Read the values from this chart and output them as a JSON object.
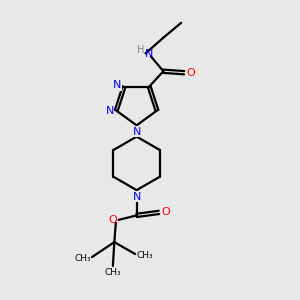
{
  "bg_color": "#e8e8e8",
  "bond_color": "#000000",
  "N_color": "#0000ff",
  "O_color": "#ff0000",
  "H_color": "#808080",
  "line_width": 1.6,
  "figsize": [
    3.0,
    3.0
  ],
  "dpi": 100,
  "xlim": [
    0,
    10
  ],
  "ylim": [
    0,
    10
  ]
}
